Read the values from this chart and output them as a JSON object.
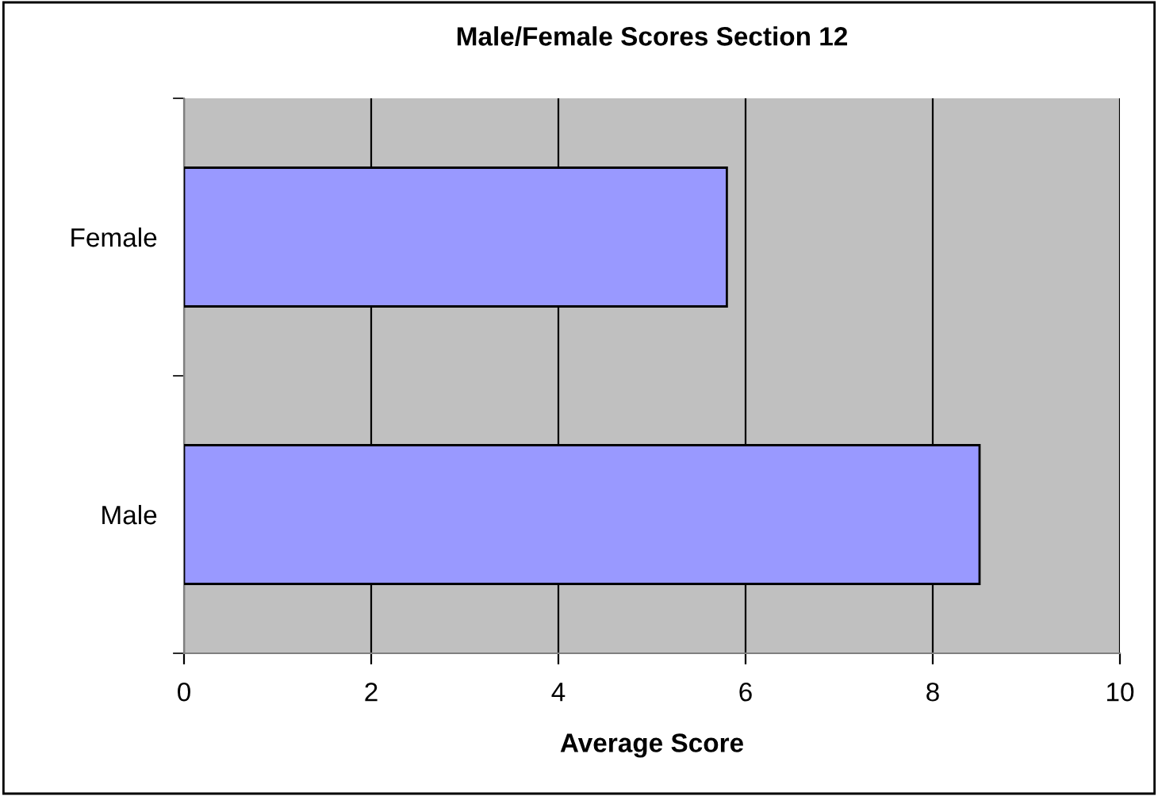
{
  "chart_data": {
    "type": "bar",
    "orientation": "horizontal",
    "title": "Male/Female Scores Section 12",
    "xlabel": "Average Score",
    "categories": [
      "Female",
      "Male"
    ],
    "series": [
      {
        "color": "#9999ff",
        "values": [
          5.8,
          8.5
        ]
      }
    ],
    "xlim": [
      0,
      10
    ],
    "xticks": [
      0,
      2,
      4,
      6,
      8,
      10
    ],
    "grid": "x",
    "legend": false
  }
}
